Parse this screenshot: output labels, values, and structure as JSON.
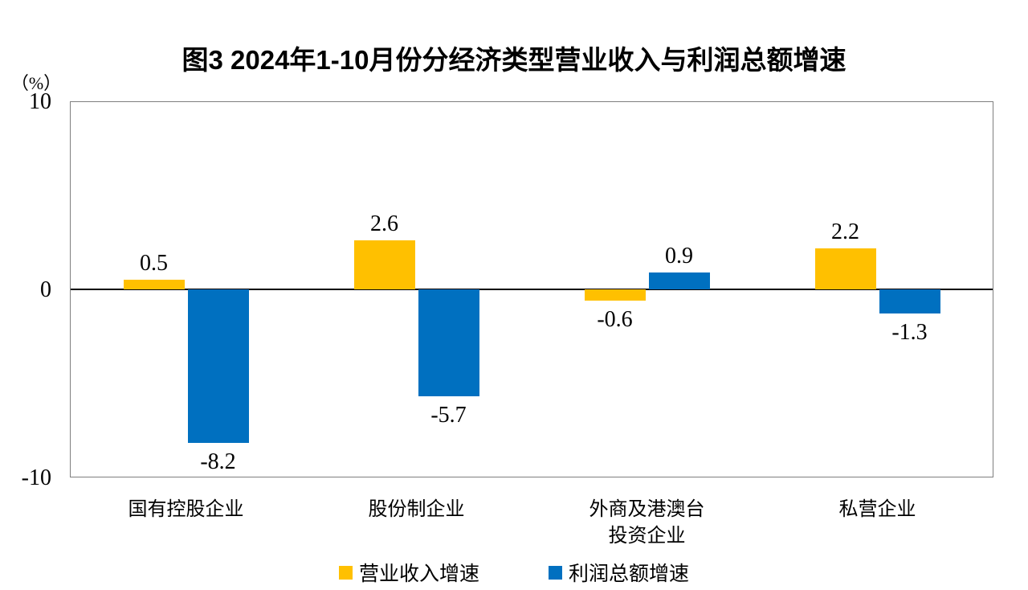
{
  "title": "图3  2024年1-10月份分经济类型营业收入与利润总额增速",
  "y_axis": {
    "unit_label": "（%）",
    "ticks": [
      "10",
      "0",
      "-10"
    ]
  },
  "chart_data": {
    "type": "bar",
    "title": "图3  2024年1-10月份分经济类型营业收入与利润总额增速",
    "categories": [
      "国有控股企业",
      "股份制企业",
      "外商及港澳台\n投资企业",
      "私营企业"
    ],
    "series": [
      {
        "name": "营业收入增速",
        "color": "#FFC000",
        "values": [
          0.5,
          2.6,
          -0.6,
          2.2
        ],
        "labels": [
          "0.5",
          "2.6",
          "-0.6",
          "2.2"
        ]
      },
      {
        "name": "利润总额增速",
        "color": "#0070C0",
        "values": [
          -8.2,
          -5.7,
          0.9,
          -1.3
        ],
        "labels": [
          "-8.2",
          "-5.7",
          "0.9",
          "-1.3"
        ]
      }
    ],
    "ylabel": "（%）",
    "ylim": [
      -10,
      10
    ],
    "yticks": [
      10,
      0,
      -10
    ],
    "grid": false,
    "legend_position": "bottom",
    "colors": {
      "zero_line": "#000000",
      "plot_border": "#7f7f7f",
      "background": "#ffffff"
    }
  },
  "legend": {
    "items": [
      {
        "label": "营业收入增速",
        "color": "#FFC000"
      },
      {
        "label": "利润总额增速",
        "color": "#0070C0"
      }
    ]
  }
}
